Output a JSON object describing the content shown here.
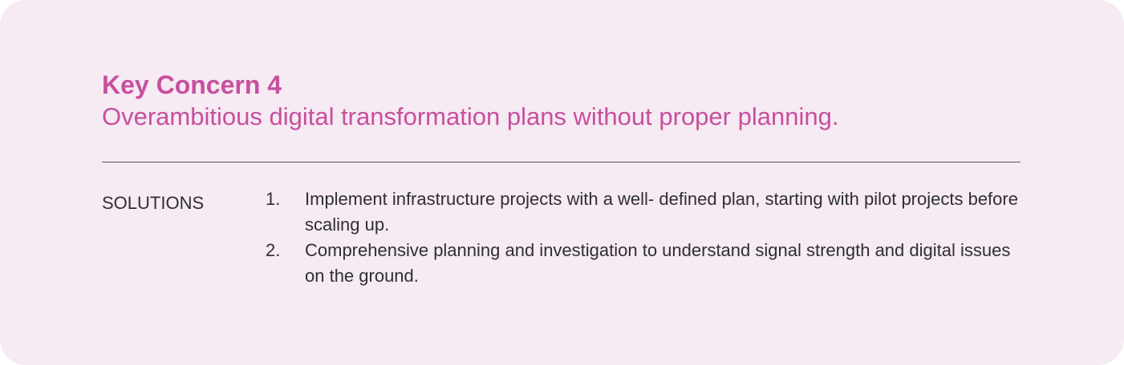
{
  "concern": {
    "title": "Key Concern 4",
    "description": "Overambitious digital transformation plans without proper planning."
  },
  "solutions": {
    "label": "SOLUTIONS",
    "items": [
      {
        "number": "1.",
        "text": "Implement infrastructure projects with a well- defined plan, starting with pilot projects before scaling up."
      },
      {
        "number": "2.",
        "text": "Comprehensive planning and investigation to understand signal strength and digital issues on the ground."
      }
    ]
  },
  "colors": {
    "accent": "#c7509e",
    "background": "#f6eaf3",
    "text": "#2e2e36",
    "divider": "#5a5a5a"
  }
}
